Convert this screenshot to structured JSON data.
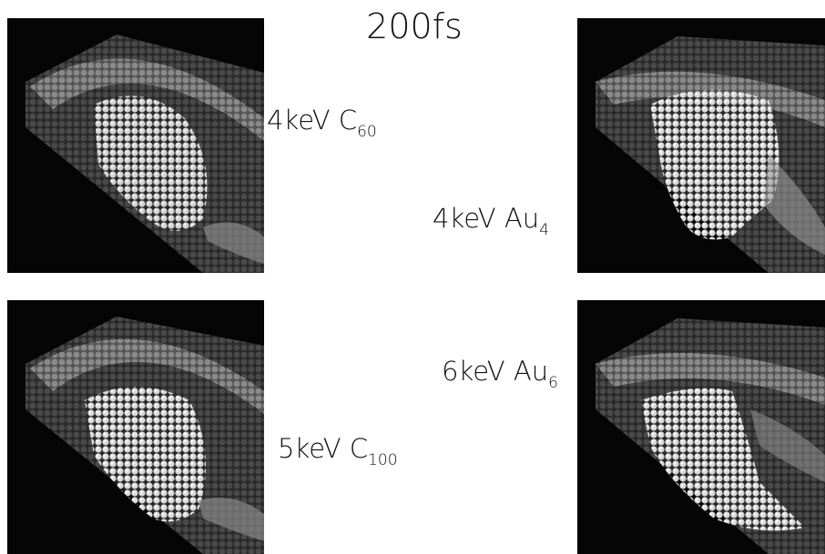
{
  "title": "200fs",
  "panels": [
    {
      "label": "4keV C",
      "subscript": "60"
    },
    {
      "label": "4keV Au",
      "subscript": "4"
    },
    {
      "label": "6keV Au",
      "subscript": "6"
    },
    {
      "label": "5keV C",
      "subscript": "100"
    }
  ]
}
